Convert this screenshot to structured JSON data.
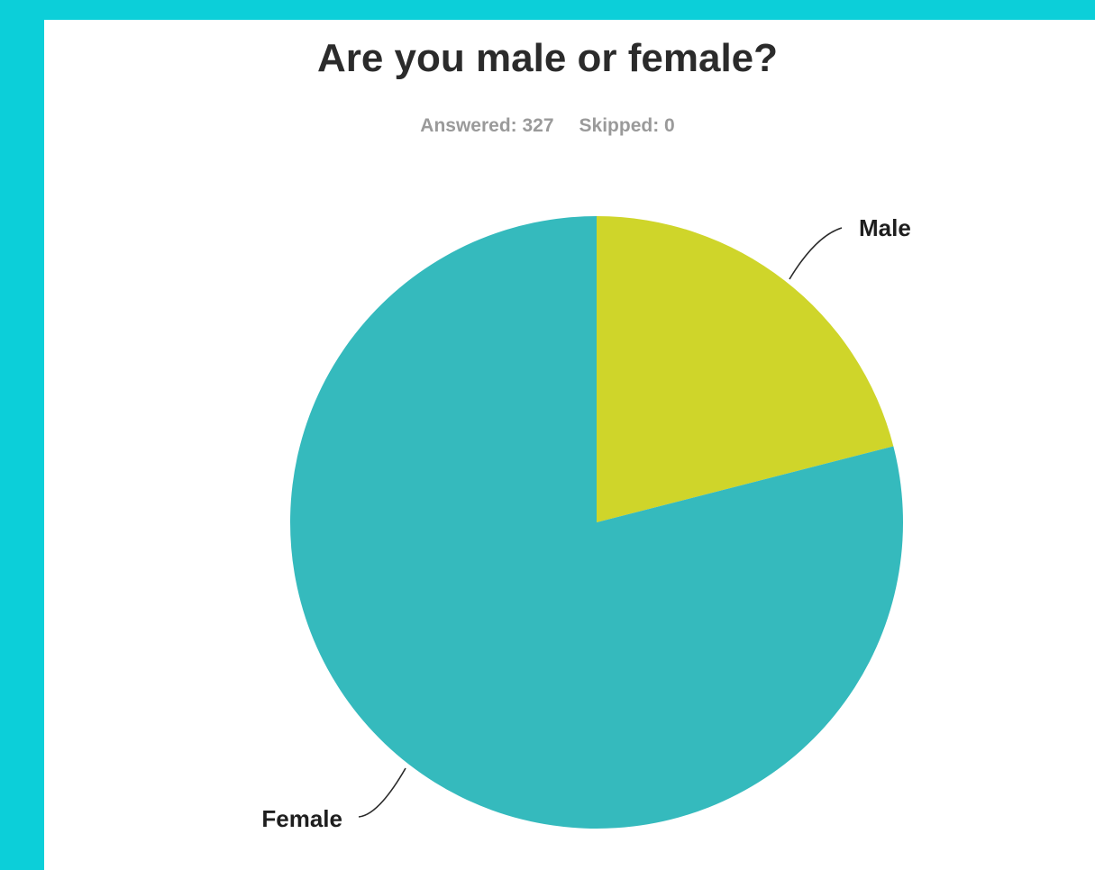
{
  "chart_data": {
    "type": "pie",
    "title": "Are you male or female?",
    "summary": {
      "answered_label": "Answered: 327",
      "skipped_label": "Skipped: 0"
    },
    "categories": [
      "Male",
      "Female"
    ],
    "values": [
      21,
      79
    ],
    "colors": [
      "#cfd52a",
      "#35babd"
    ],
    "start": "12 o'clock",
    "direction": "clockwise"
  }
}
